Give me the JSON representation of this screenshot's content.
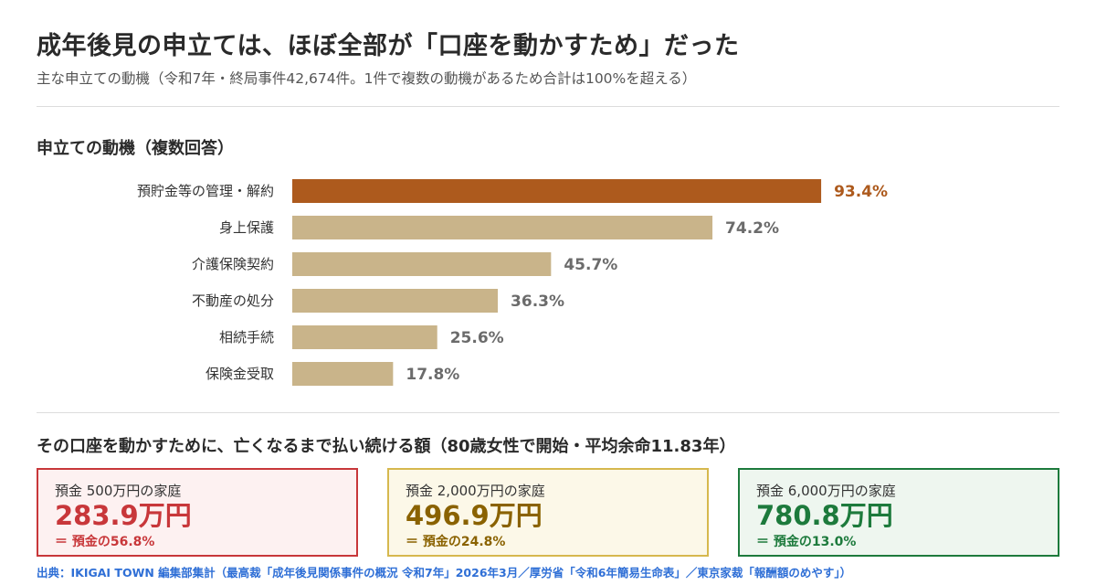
{
  "header": {
    "title": "成年後見の申立ては、ほぼ全部が「口座を動かすため」だった",
    "subtitle": "主な申立ての動機（令和7年・終局事件42,674件。1件で複数の動機があるため合計は100%を超える）"
  },
  "chart_section_title": "申立ての動機（複数回答）",
  "chart_data": {
    "type": "bar",
    "orientation": "horizontal",
    "categories": [
      "預貯金等の管理・解約",
      "身上保護",
      "介護保険契約",
      "不動産の処分",
      "相続手続",
      "保険金受取"
    ],
    "values": [
      93.4,
      74.2,
      45.7,
      36.3,
      25.6,
      17.8
    ],
    "value_labels": [
      "93.4%",
      "74.2%",
      "45.7%",
      "36.3%",
      "25.6%",
      "17.8%"
    ],
    "xlim": [
      0,
      100
    ],
    "grid": false,
    "colors": {
      "highlight": "#ad5a1d",
      "normal": "#c9b48a",
      "normal_label": "#6b6b6b"
    }
  },
  "cost_section_title": "その口座を動かすために、亡くなるまで払い続ける額（80歳女性で開始・平均余命11.83年）",
  "cards": [
    {
      "label": "預金 500万円の家庭",
      "value": "283.9万円",
      "ratio": "＝ 預金の56.8%",
      "color": "#c8373a",
      "bg": "#fdf1f1"
    },
    {
      "label": "預金 2,000万円の家庭",
      "value": "496.9万円",
      "ratio": "＝ 預金の24.8%",
      "color": "#8a6200",
      "bg": "#fcf8e8",
      "border": "#d6b84e"
    },
    {
      "label": "預金 6,000万円の家庭",
      "value": "780.8万円",
      "ratio": "＝ 預金の13.0%",
      "color": "#1d7a3c",
      "bg": "#eef6ef"
    }
  ],
  "source": "出典：IKIGAI TOWN 編集部集計（最高裁「成年後見関係事件の概況 令和7年」2026年3月／厚労省「令和6年簡易生命表」／東京家裁「報酬額のめやす」）"
}
